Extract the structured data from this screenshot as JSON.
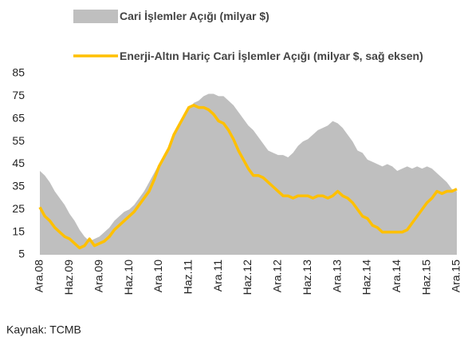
{
  "chart_data": {
    "type": "area_line",
    "categories": [
      "Ara.08",
      null,
      null,
      null,
      null,
      null,
      "Haz.09",
      null,
      null,
      null,
      null,
      null,
      "Ara.09",
      null,
      null,
      null,
      null,
      null,
      "Haz.10",
      null,
      null,
      null,
      null,
      null,
      "Ara.10",
      null,
      null,
      null,
      null,
      null,
      "Haz.11",
      null,
      null,
      null,
      null,
      null,
      "Ara.11",
      null,
      null,
      null,
      null,
      null,
      "Haz.12",
      null,
      null,
      null,
      null,
      null,
      "Ara.12",
      null,
      null,
      null,
      null,
      null,
      "Haz.13",
      null,
      null,
      null,
      null,
      null,
      "Ara.13",
      null,
      null,
      null,
      null,
      null,
      "Haz.14",
      null,
      null,
      null,
      null,
      null,
      "Ara.14",
      null,
      null,
      null,
      null,
      null,
      "Haz.15",
      null,
      null,
      null,
      null,
      null,
      "Ara.15"
    ],
    "series": [
      {
        "name": "Cari İşlemler Açığı (milyar $)",
        "color": "#bfbfbf",
        "values": [
          42,
          40,
          37,
          33,
          30,
          27,
          23,
          20,
          16,
          13,
          11,
          12,
          13,
          15,
          17,
          20,
          22,
          24,
          25,
          27,
          30,
          33,
          37,
          41,
          45,
          49,
          53,
          57,
          61,
          65,
          69,
          72,
          73,
          75,
          76,
          76,
          75,
          75,
          73,
          71,
          68,
          65,
          62,
          60,
          57,
          54,
          51,
          50,
          49,
          49,
          48,
          50,
          53,
          55,
          56,
          58,
          60,
          61,
          62,
          64,
          63,
          61,
          58,
          55,
          51,
          50,
          47,
          46,
          45,
          44,
          45,
          44,
          42,
          43,
          44,
          43,
          44,
          43,
          44,
          43,
          41,
          39,
          37,
          34,
          33
        ]
      },
      {
        "name": "Enerji-Altın Hariç Cari İşlemler Açığı (milyar $, sağ eksen)",
        "color": "#ffc000",
        "values": [
          26,
          22,
          20,
          17,
          15,
          13,
          12,
          10,
          8,
          9,
          12,
          9,
          10,
          11,
          13,
          16,
          18,
          20,
          22,
          24,
          27,
          30,
          33,
          38,
          44,
          48,
          52,
          58,
          62,
          66,
          70,
          71,
          70,
          70,
          69,
          67,
          64,
          63,
          60,
          56,
          51,
          47,
          43,
          40,
          40,
          39,
          37,
          35,
          33,
          31,
          31,
          30,
          31,
          31,
          31,
          30,
          31,
          31,
          30,
          31,
          33,
          31,
          30,
          28,
          25,
          22,
          21,
          18,
          17,
          15,
          15,
          15,
          15,
          15,
          16,
          19,
          22,
          25,
          28,
          30,
          33,
          32,
          33,
          33,
          34
        ]
      }
    ],
    "ylim": [
      5,
      85
    ],
    "yticks": [
      5,
      15,
      25,
      35,
      45,
      55,
      65,
      75,
      85
    ],
    "source": "Kaynak: TCMB"
  }
}
